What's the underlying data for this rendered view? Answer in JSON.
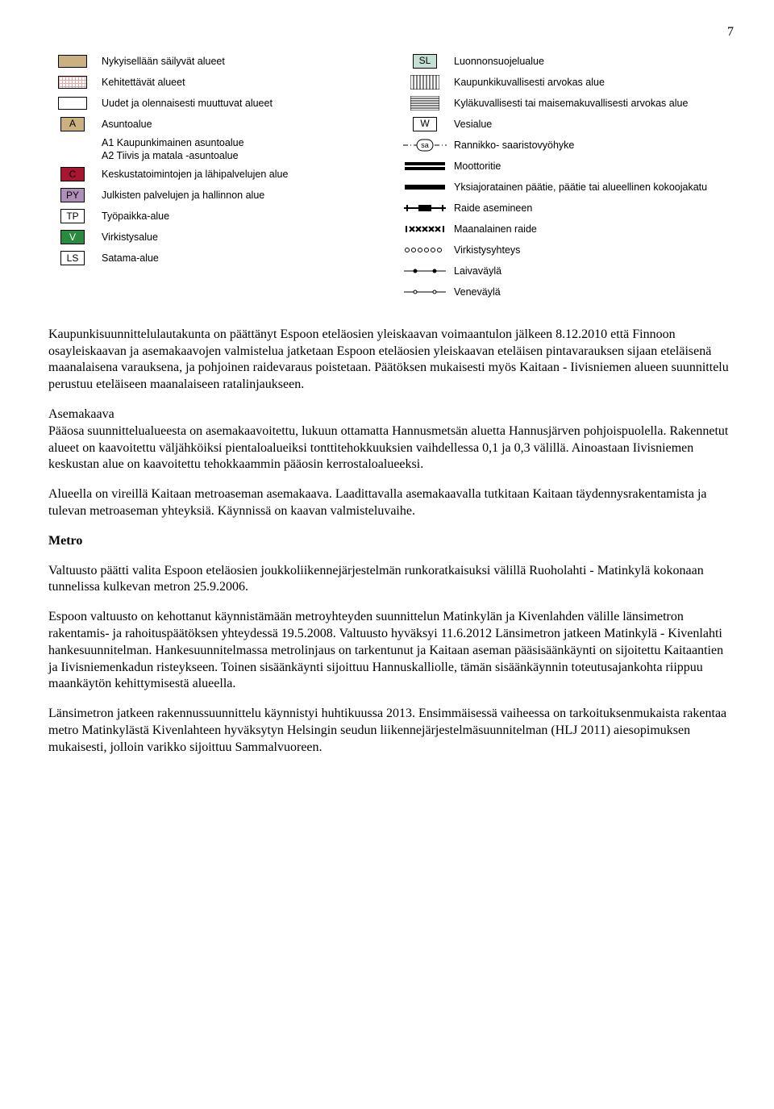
{
  "page_number": "7",
  "legend": {
    "left": [
      {
        "kind": "swatch",
        "fill": "#cbb180",
        "stroke": "#000000",
        "label": "Nykyisellään säilyvät alueet"
      },
      {
        "kind": "grid-swatch",
        "fill": "#ffffff",
        "grid": "#e8a8a8",
        "label": "Kehitettävät alueet"
      },
      {
        "kind": "swatch",
        "fill": "#ffffff",
        "stroke": "#000000",
        "label": "Uudet ja olennaisesti  muuttuvat alueet"
      },
      {
        "kind": "letter",
        "letter": "A",
        "fill": "#cbb180",
        "label": "Asuntoalue",
        "sub": [
          "A1 Kaupunkimainen asuntoalue",
          "A2 Tiivis ja matala -asuntoalue"
        ]
      },
      {
        "kind": "letter",
        "letter": "C",
        "fill": "#a8152f",
        "color": "#000000",
        "label": "Keskustatoimintojen ja lähipalvelujen alue"
      },
      {
        "kind": "letter",
        "letter": "PY",
        "fill": "#b08fb8",
        "label": "Julkisten palvelujen ja hallinnon alue"
      },
      {
        "kind": "letter",
        "letter": "TP",
        "fill": "#ffffff",
        "label": "Työpaikka-alue"
      },
      {
        "kind": "letter",
        "letter": "V",
        "fill": "#2a8a3e",
        "color": "#ffffff",
        "label": "Virkistysalue"
      },
      {
        "kind": "letter",
        "letter": "LS",
        "fill": "#ffffff",
        "label": "Satama-alue"
      }
    ],
    "right": [
      {
        "kind": "letter",
        "letter": "SL",
        "fill": "#c4e0d4",
        "label": "Luonnonsuojelualue"
      },
      {
        "kind": "vstripes",
        "label": "Kaupunkikuvallisesti arvokas alue"
      },
      {
        "kind": "hstripes",
        "label": "Kyläkuvallisesti tai maisemakuvallisesti arvokas alue"
      },
      {
        "kind": "letter",
        "letter": "W",
        "fill": "#ffffff",
        "label": "Vesialue"
      },
      {
        "kind": "sa-pill",
        "letter": "sa",
        "label": "Rannikko- saaristovyöhyke"
      },
      {
        "kind": "motorway",
        "label": "Moottoritie"
      },
      {
        "kind": "thickline",
        "label": "Yksiajoratainen päätie, päätie tai alueellinen kokoojakatu"
      },
      {
        "kind": "rail-station",
        "label": "Raide asemineen"
      },
      {
        "kind": "rail-underground",
        "label": "Maanalainen raide"
      },
      {
        "kind": "circles",
        "label": "Virkistysyhteys"
      },
      {
        "kind": "ship-lane",
        "label": "Laivaväylä"
      },
      {
        "kind": "boat-lane",
        "label": "Veneväylä"
      }
    ]
  },
  "paragraphs": {
    "p1": "Kaupunkisuunnittelulautakunta on päättänyt Espoon eteläosien yleiskaavan voimaantulon jälkeen 8.12.2010 että Finnoon osayleiskaavan ja asemakaavojen valmistelua jatketaan Espoon eteläosien yleiskaavan eteläisen pintavarauksen sijaan eteläisenä maanalaisena varauksena, ja pohjoinen raidevaraus poistetaan. Päätöksen mukaisesti myös Kaitaan - Iivisniemen alueen suunnittelu perustuu eteläiseen maanalaiseen ratalinjaukseen.",
    "p2a": "Asemakaava",
    "p2b": "Pääosa suunnittelualueesta on asemakaavoitettu, lukuun ottamatta Hannusmetsän aluetta Hannusjärven pohjoispuolella. Rakennetut alueet on kaavoitettu väljähköiksi pientaloalueiksi tonttitehokkuuksien vaihdellessa 0,1 ja 0,3 välillä. Ainoastaan Iivisniemen keskustan alue on kaavoitettu tehokkaammin pääosin kerrostaloalueeksi.",
    "p3": "Alueella on vireillä Kaitaan metroaseman asemakaava. Laadittavalla asemakaavalla tutkitaan Kaitaan täydennysrakentamista ja tulevan metroaseman yhteyksiä. Käynnissä on kaavan valmisteluvaihe.",
    "metro_heading": "Metro",
    "p4": "Valtuusto päätti valita Espoon eteläosien joukkoliikennejärjestelmän runkoratkaisuksi välillä Ruoholahti - Matinkylä kokonaan tunnelissa kulkevan metron 25.9.2006.",
    "p5": "Espoon valtuusto on kehottanut käynnistämään metroyhteyden suunnittelun Matinkylän ja Kivenlahden välille länsimetron rakentamis- ja rahoituspäätöksen yhteydessä 19.5.2008. Valtuusto hyväksyi 11.6.2012 Länsimetron jatkeen Matinkylä - Kivenlahti hankesuunnitelman. Hankesuunnitelmassa metrolinjaus on tarkentunut ja Kaitaan aseman pääsisäänkäynti on sijoitettu Kaitaantien ja Iivisniemenkadun risteykseen. Toinen sisäänkäynti sijoittuu Hannuskalliolle, tämän sisäänkäynnin toteutusajankohta riippuu maankäytön kehittymisestä alueella.",
    "p6": "Länsimetron jatkeen rakennussuunnittelu käynnistyi huhtikuussa 2013. Ensimmäisessä vaiheessa on tarkoituksenmukaista rakentaa metro Matinkylästä Kivenlahteen hyväksytyn Helsingin seudun liikennejärjestelmäsuunnitelman (HLJ 2011) aiesopimuksen mukaisesti, jolloin varikko sijoittuu Sammalvuoreen."
  }
}
